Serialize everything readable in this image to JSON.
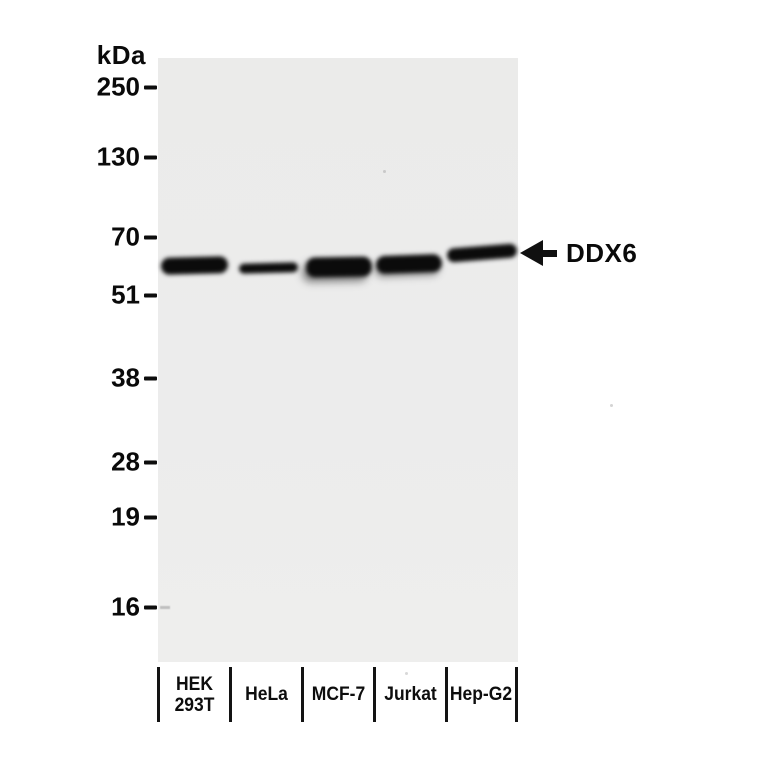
{
  "ladder": {
    "unit": "kDa",
    "markers": [
      "250",
      "130",
      "70",
      "51",
      "38",
      "28",
      "19",
      "16"
    ]
  },
  "lanes": {
    "labels": [
      "HEK\n293T",
      "HeLa",
      "MCF-7",
      "Jurkat",
      "Hep-G2"
    ]
  },
  "annotation": {
    "target": "DDX6"
  },
  "chart_data": {
    "type": "western-blot",
    "title": "",
    "target_protein": "DDX6",
    "ladder_unit": "kDa",
    "ladder_kda": [
      250,
      130,
      70,
      51,
      38,
      28,
      19,
      16
    ],
    "lanes": [
      "HEK 293T",
      "HeLa",
      "MCF-7",
      "Jurkat",
      "Hep-G2"
    ],
    "bands": [
      {
        "lane": "HEK 293T",
        "approx_kda": 60,
        "intensity": "strong"
      },
      {
        "lane": "HeLa",
        "approx_kda": 60,
        "intensity": "medium"
      },
      {
        "lane": "MCF-7",
        "approx_kda": 60,
        "intensity": "strong"
      },
      {
        "lane": "Jurkat",
        "approx_kda": 60,
        "intensity": "strong"
      },
      {
        "lane": "Hep-G2",
        "approx_kda": 61,
        "intensity": "strong",
        "note": "band tilts upward toward arrow"
      }
    ],
    "annotations": [
      {
        "text": "DDX6",
        "kind": "left-arrow",
        "points_to_kda": 60
      }
    ],
    "layout_hints": {
      "ladder_position": "left of gel",
      "lane_labels_position": "below gel, separated by vertical lines",
      "gel_background": "#ececec",
      "band_color": "#0b0b0b"
    }
  }
}
